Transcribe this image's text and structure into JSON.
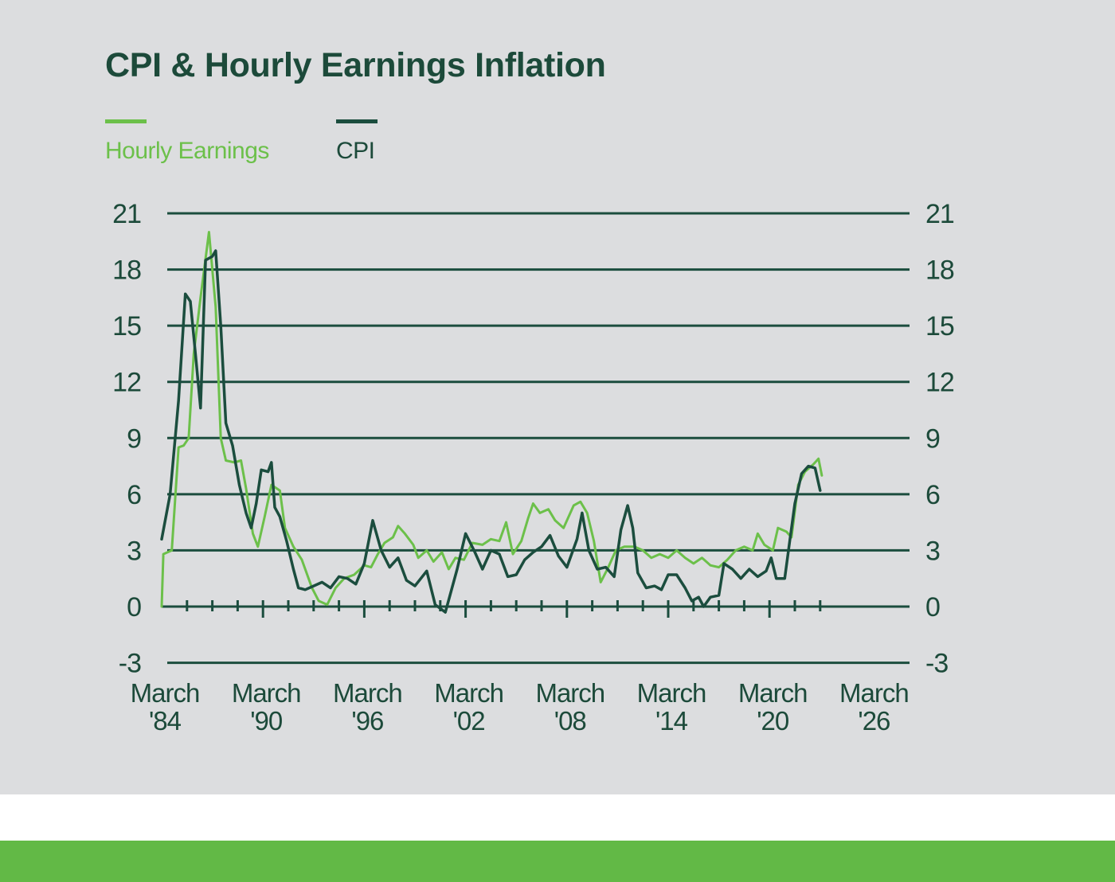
{
  "chart_data": {
    "type": "line",
    "title": "CPI & Hourly Earnings Inflation",
    "xlabel": "",
    "ylabel": "",
    "ylim": [
      -3,
      21
    ],
    "xlim": [
      1984,
      2028
    ],
    "y_ticks": [
      21,
      18,
      15,
      12,
      9,
      6,
      3,
      0,
      -3
    ],
    "x_tick_labels": [
      {
        "year": 1984,
        "line1": "March",
        "line2": "'84"
      },
      {
        "year": 1990,
        "line1": "March",
        "line2": "'90"
      },
      {
        "year": 1996,
        "line1": "March",
        "line2": "'96"
      },
      {
        "year": 2002,
        "line1": "March",
        "line2": "'02"
      },
      {
        "year": 2008,
        "line1": "March",
        "line2": "'08"
      },
      {
        "year": 2014,
        "line1": "March",
        "line2": "'14"
      },
      {
        "year": 2020,
        "line1": "March",
        "line2": "'20"
      },
      {
        "year": 2026,
        "line1": "March",
        "line2": "'26"
      }
    ],
    "grid": true,
    "legend_position": "top-left",
    "series": [
      {
        "name": "Hourly Earnings",
        "color": "#6cc04a",
        "points": [
          [
            1984.0,
            0
          ],
          [
            1984.1,
            2.8
          ],
          [
            1984.6,
            3
          ],
          [
            1985.0,
            8.5
          ],
          [
            1985.3,
            8.6
          ],
          [
            1985.6,
            9
          ],
          [
            1985.9,
            13.5
          ],
          [
            1986.3,
            16.5
          ],
          [
            1986.8,
            20
          ],
          [
            1987.2,
            16
          ],
          [
            1987.5,
            9
          ],
          [
            1987.8,
            7.8
          ],
          [
            1988.3,
            7.7
          ],
          [
            1988.7,
            7.8
          ],
          [
            1989.0,
            6.3
          ],
          [
            1989.4,
            3.9
          ],
          [
            1989.7,
            3.2
          ],
          [
            1990.1,
            4.8
          ],
          [
            1990.5,
            6.5
          ],
          [
            1991.0,
            6.2
          ],
          [
            1991.3,
            4.2
          ],
          [
            1991.8,
            3.2
          ],
          [
            1992.3,
            2.5
          ],
          [
            1992.9,
            1
          ],
          [
            1993.3,
            0.3
          ],
          [
            1993.8,
            0.1
          ],
          [
            1994.3,
            1
          ],
          [
            1994.8,
            1.5
          ],
          [
            1995.4,
            1.7
          ],
          [
            1996.0,
            2.2
          ],
          [
            1996.4,
            2.1
          ],
          [
            1996.8,
            2.8
          ],
          [
            1997.2,
            3.4
          ],
          [
            1997.7,
            3.7
          ],
          [
            1998.0,
            4.3
          ],
          [
            1998.4,
            3.9
          ],
          [
            1998.9,
            3.3
          ],
          [
            1999.2,
            2.6
          ],
          [
            1999.7,
            3
          ],
          [
            2000.1,
            2.4
          ],
          [
            2000.6,
            2.9
          ],
          [
            2001.0,
            2
          ],
          [
            2001.4,
            2.6
          ],
          [
            2001.9,
            2.5
          ],
          [
            2002.4,
            3.4
          ],
          [
            2003.0,
            3.3
          ],
          [
            2003.5,
            3.6
          ],
          [
            2004.0,
            3.5
          ],
          [
            2004.4,
            4.5
          ],
          [
            2004.8,
            2.8
          ],
          [
            2005.3,
            3.5
          ],
          [
            2005.7,
            4.7
          ],
          [
            2006.0,
            5.5
          ],
          [
            2006.4,
            5.0
          ],
          [
            2006.9,
            5.2
          ],
          [
            2007.3,
            4.6
          ],
          [
            2007.8,
            4.2
          ],
          [
            2008.4,
            5.4
          ],
          [
            2008.8,
            5.6
          ],
          [
            2009.2,
            5.0
          ],
          [
            2009.6,
            3.5
          ],
          [
            2010.0,
            1.3
          ],
          [
            2010.4,
            2.0
          ],
          [
            2010.9,
            3
          ],
          [
            2011.4,
            3.2
          ],
          [
            2012.0,
            3.2
          ],
          [
            2012.5,
            3.0
          ],
          [
            2013.0,
            2.6
          ],
          [
            2013.5,
            2.8
          ],
          [
            2014.0,
            2.6
          ],
          [
            2014.5,
            3.0
          ],
          [
            2015.0,
            2.6
          ],
          [
            2015.5,
            2.3
          ],
          [
            2016.0,
            2.6
          ],
          [
            2016.5,
            2.2
          ],
          [
            2017.0,
            2.1
          ],
          [
            2017.5,
            2.5
          ],
          [
            2018.0,
            3.0
          ],
          [
            2018.5,
            3.2
          ],
          [
            2019.0,
            3.0
          ],
          [
            2019.3,
            3.9
          ],
          [
            2019.7,
            3.3
          ],
          [
            2020.2,
            3.0
          ],
          [
            2020.5,
            4.2
          ],
          [
            2021.0,
            4.0
          ],
          [
            2021.3,
            3.7
          ],
          [
            2021.7,
            6.5
          ],
          [
            2022.1,
            7.2
          ],
          [
            2022.6,
            7.6
          ],
          [
            2022.9,
            7.9
          ],
          [
            2023.1,
            7.0
          ]
        ]
      },
      {
        "name": "CPI",
        "color": "#1b4d3e",
        "points": [
          [
            1984.0,
            3.6
          ],
          [
            1984.5,
            6
          ],
          [
            1985.0,
            11
          ],
          [
            1985.4,
            16.7
          ],
          [
            1985.7,
            16.3
          ],
          [
            1986.0,
            13.5
          ],
          [
            1986.3,
            10.6
          ],
          [
            1986.6,
            18.5
          ],
          [
            1987.0,
            18.7
          ],
          [
            1987.2,
            19.0
          ],
          [
            1987.5,
            15
          ],
          [
            1987.8,
            9.8
          ],
          [
            1988.2,
            8.6
          ],
          [
            1988.6,
            6.5
          ],
          [
            1989.0,
            5
          ],
          [
            1989.3,
            4.2
          ],
          [
            1989.6,
            5.5
          ],
          [
            1989.9,
            7.3
          ],
          [
            1990.3,
            7.2
          ],
          [
            1990.5,
            7.7
          ],
          [
            1990.7,
            5.3
          ],
          [
            1991.0,
            4.8
          ],
          [
            1991.4,
            3.5
          ],
          [
            1991.8,
            2
          ],
          [
            1992.1,
            1
          ],
          [
            1992.5,
            0.9
          ],
          [
            1993.0,
            1.1
          ],
          [
            1993.5,
            1.3
          ],
          [
            1994.0,
            1.0
          ],
          [
            1994.5,
            1.6
          ],
          [
            1995.0,
            1.5
          ],
          [
            1995.5,
            1.2
          ],
          [
            1996.0,
            2.3
          ],
          [
            1996.5,
            4.6
          ],
          [
            1997.0,
            3
          ],
          [
            1997.5,
            2.1
          ],
          [
            1998.0,
            2.6
          ],
          [
            1998.5,
            1.4
          ],
          [
            1999.0,
            1.1
          ],
          [
            1999.7,
            1.9
          ],
          [
            2000.2,
            0.1
          ],
          [
            2000.8,
            -0.3
          ],
          [
            2001.5,
            2
          ],
          [
            2002.0,
            3.9
          ],
          [
            2002.5,
            3
          ],
          [
            2003.0,
            2
          ],
          [
            2003.5,
            3
          ],
          [
            2004.0,
            2.8
          ],
          [
            2004.5,
            1.6
          ],
          [
            2005.0,
            1.7
          ],
          [
            2005.5,
            2.5
          ],
          [
            2006.0,
            2.9
          ],
          [
            2006.5,
            3.2
          ],
          [
            2007.0,
            3.8
          ],
          [
            2007.5,
            2.7
          ],
          [
            2008.0,
            2.1
          ],
          [
            2008.6,
            3.6
          ],
          [
            2008.9,
            5.0
          ],
          [
            2009.3,
            3
          ],
          [
            2009.8,
            2
          ],
          [
            2010.3,
            2.1
          ],
          [
            2010.8,
            1.6
          ],
          [
            2011.2,
            4.1
          ],
          [
            2011.6,
            5.4
          ],
          [
            2011.9,
            4.2
          ],
          [
            2012.2,
            1.8
          ],
          [
            2012.7,
            1.0
          ],
          [
            2013.2,
            1.1
          ],
          [
            2013.6,
            0.9
          ],
          [
            2014.0,
            1.7
          ],
          [
            2014.5,
            1.7
          ],
          [
            2015.0,
            1.0
          ],
          [
            2015.4,
            0.3
          ],
          [
            2015.8,
            0.5
          ],
          [
            2016.1,
            0.0
          ],
          [
            2016.5,
            0.5
          ],
          [
            2017.0,
            0.6
          ],
          [
            2017.3,
            2.3
          ],
          [
            2017.8,
            2.0
          ],
          [
            2018.3,
            1.5
          ],
          [
            2018.8,
            2.0
          ],
          [
            2019.3,
            1.6
          ],
          [
            2019.8,
            1.9
          ],
          [
            2020.1,
            2.6
          ],
          [
            2020.4,
            1.5
          ],
          [
            2020.9,
            1.5
          ],
          [
            2021.2,
            3.5
          ],
          [
            2021.5,
            5.5
          ],
          [
            2021.9,
            7.1
          ],
          [
            2022.3,
            7.5
          ],
          [
            2022.7,
            7.4
          ],
          [
            2023.0,
            6.2
          ]
        ]
      }
    ]
  },
  "legend": [
    {
      "label": "Hourly Earnings",
      "color": "#6cc04a"
    },
    {
      "label": "CPI",
      "color": "#1b4d3e"
    }
  ],
  "colors": {
    "panel_bg": "#dcdddf",
    "text_dark": "#1c4a3a",
    "grid": "#1b4d3e",
    "footer": "#62b946"
  }
}
